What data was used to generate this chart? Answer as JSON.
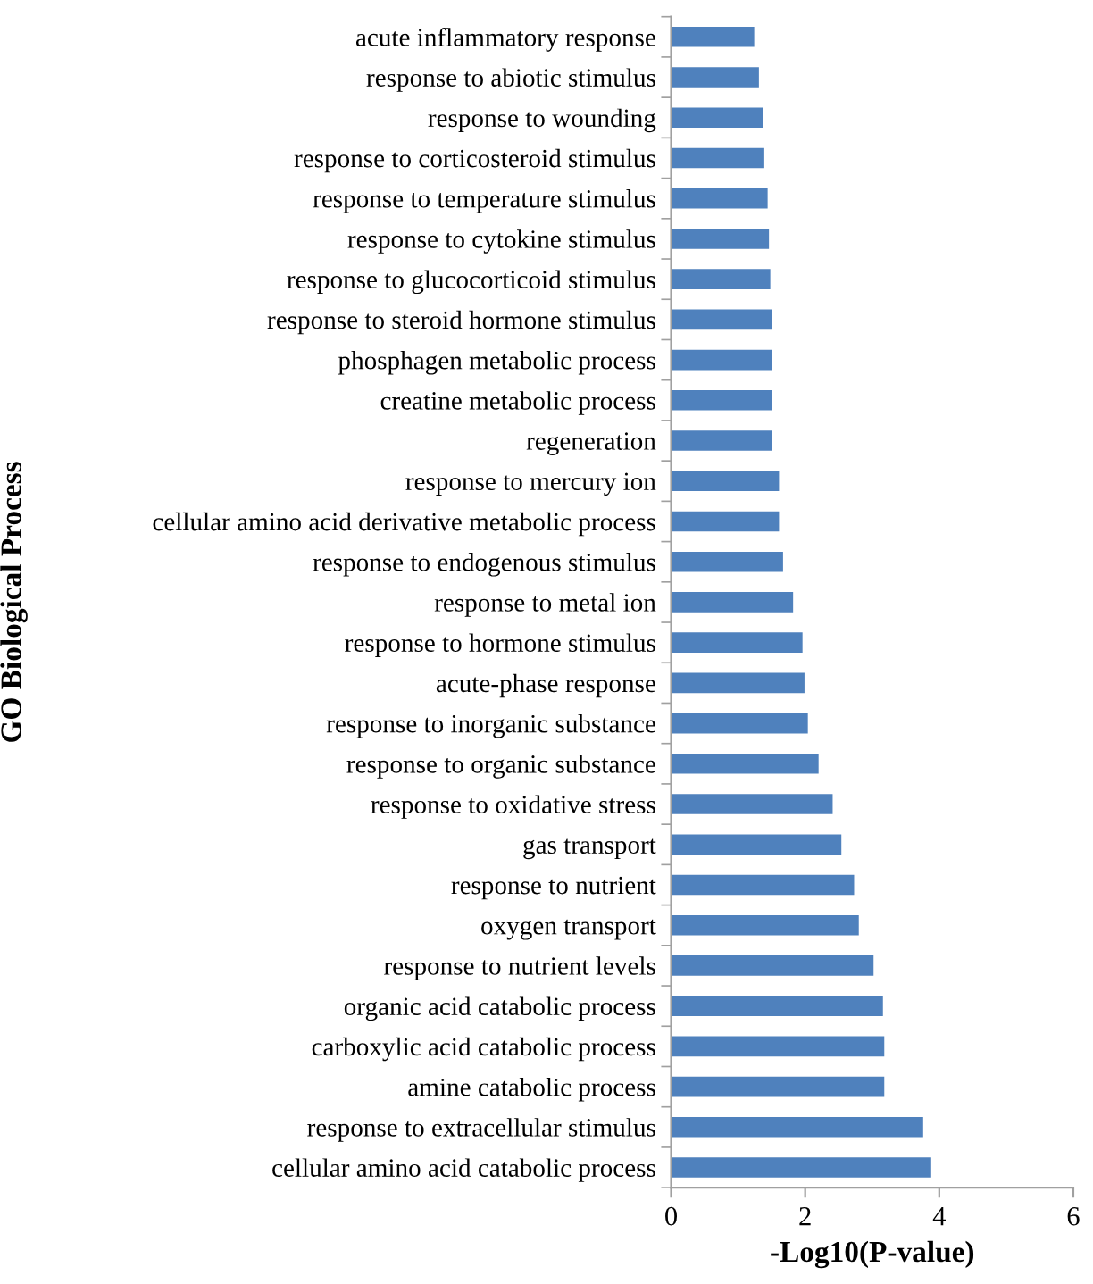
{
  "chart_data": {
    "type": "bar",
    "orientation": "horizontal",
    "xlabel": "-Log10(P-value)",
    "ylabel": "GO Biological Process",
    "categories": [
      "acute inflammatory response",
      "response to abiotic stimulus",
      "response to wounding",
      "response to corticosteroid stimulus",
      "response to temperature stimulus",
      "response to cytokine stimulus",
      "response to glucocorticoid stimulus",
      "response to steroid hormone stimulus",
      "phosphagen metabolic process",
      "creatine metabolic process",
      "regeneration",
      "response to mercury ion",
      "cellular amino acid derivative metabolic process",
      "response to endogenous stimulus",
      "response to metal ion",
      "response to hormone stimulus",
      "acute-phase response",
      "response to inorganic substance",
      "response to organic substance",
      "response to oxidative stress",
      "gas transport",
      "response to nutrient",
      "oxygen transport",
      "response to nutrient levels",
      "organic acid catabolic process",
      "carboxylic acid catabolic process",
      "amine catabolic process",
      "response to extracellular stimulus",
      "cellular amino acid catabolic process"
    ],
    "values": [
      1.24,
      1.31,
      1.37,
      1.39,
      1.44,
      1.46,
      1.48,
      1.5,
      1.5,
      1.5,
      1.5,
      1.61,
      1.61,
      1.67,
      1.82,
      1.96,
      1.99,
      2.04,
      2.2,
      2.41,
      2.54,
      2.73,
      2.8,
      3.02,
      3.16,
      3.18,
      3.18,
      3.76,
      3.88
    ],
    "color": "#4f81bd",
    "xlim": [
      0,
      6
    ],
    "xticks": [
      0,
      2,
      4,
      6
    ],
    "grid": false,
    "legend": false
  }
}
